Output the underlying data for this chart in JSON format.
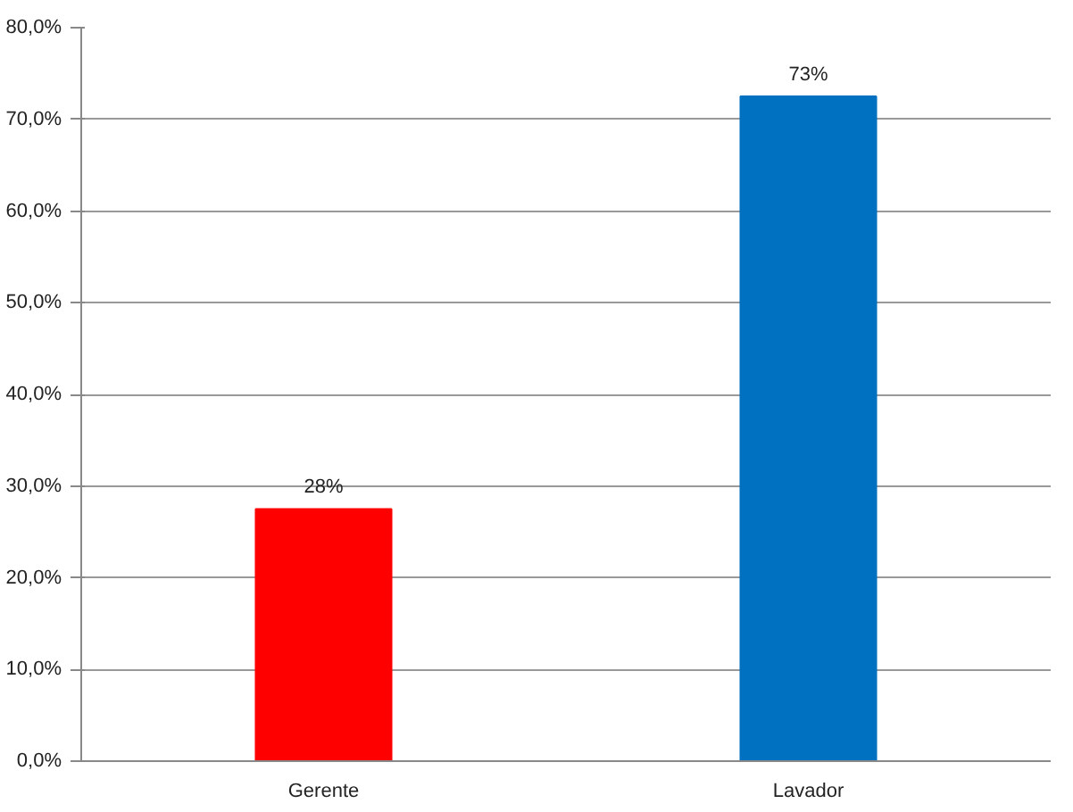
{
  "chart_data": {
    "type": "bar",
    "categories": [
      "Gerente",
      "Lavador"
    ],
    "values": [
      27.5,
      72.5
    ],
    "colors": [
      "#ff0000",
      "#0070c0"
    ],
    "value_labels": [
      "28%",
      "73%"
    ],
    "ylim": [
      0,
      80
    ],
    "yticks": [
      {
        "value": 0,
        "label": "0,0%"
      },
      {
        "value": 10,
        "label": "10,0%"
      },
      {
        "value": 20,
        "label": "20,0%"
      },
      {
        "value": 30,
        "label": "30,0%"
      },
      {
        "value": 40,
        "label": "40,0%"
      },
      {
        "value": 50,
        "label": "50,0%"
      },
      {
        "value": 60,
        "label": "60,0%"
      },
      {
        "value": 70,
        "label": "70,0%"
      },
      {
        "value": 80,
        "label": "80,0%"
      }
    ],
    "grid": "y"
  }
}
